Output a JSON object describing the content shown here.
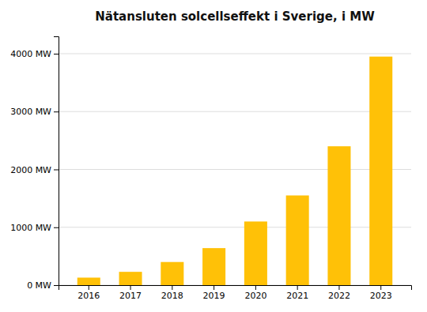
{
  "chart_data": {
    "type": "bar",
    "title": "Nätansluten solcellseffekt i Sverige, i MW",
    "categories": [
      "2016",
      "2017",
      "2018",
      "2019",
      "2020",
      "2021",
      "2022",
      "2023"
    ],
    "values": [
      130,
      230,
      400,
      640,
      1100,
      1550,
      2400,
      3950
    ],
    "color": "#FFC107",
    "ylim": [
      0,
      4300
    ],
    "yticks": [
      {
        "value": 0,
        "label": "0 MW"
      },
      {
        "value": 1000,
        "label": "1000 MW"
      },
      {
        "value": 2000,
        "label": "2000 MW"
      },
      {
        "value": 3000,
        "label": "3000 MW"
      },
      {
        "value": 4000,
        "label": "4000 MW"
      }
    ],
    "grid": true
  }
}
